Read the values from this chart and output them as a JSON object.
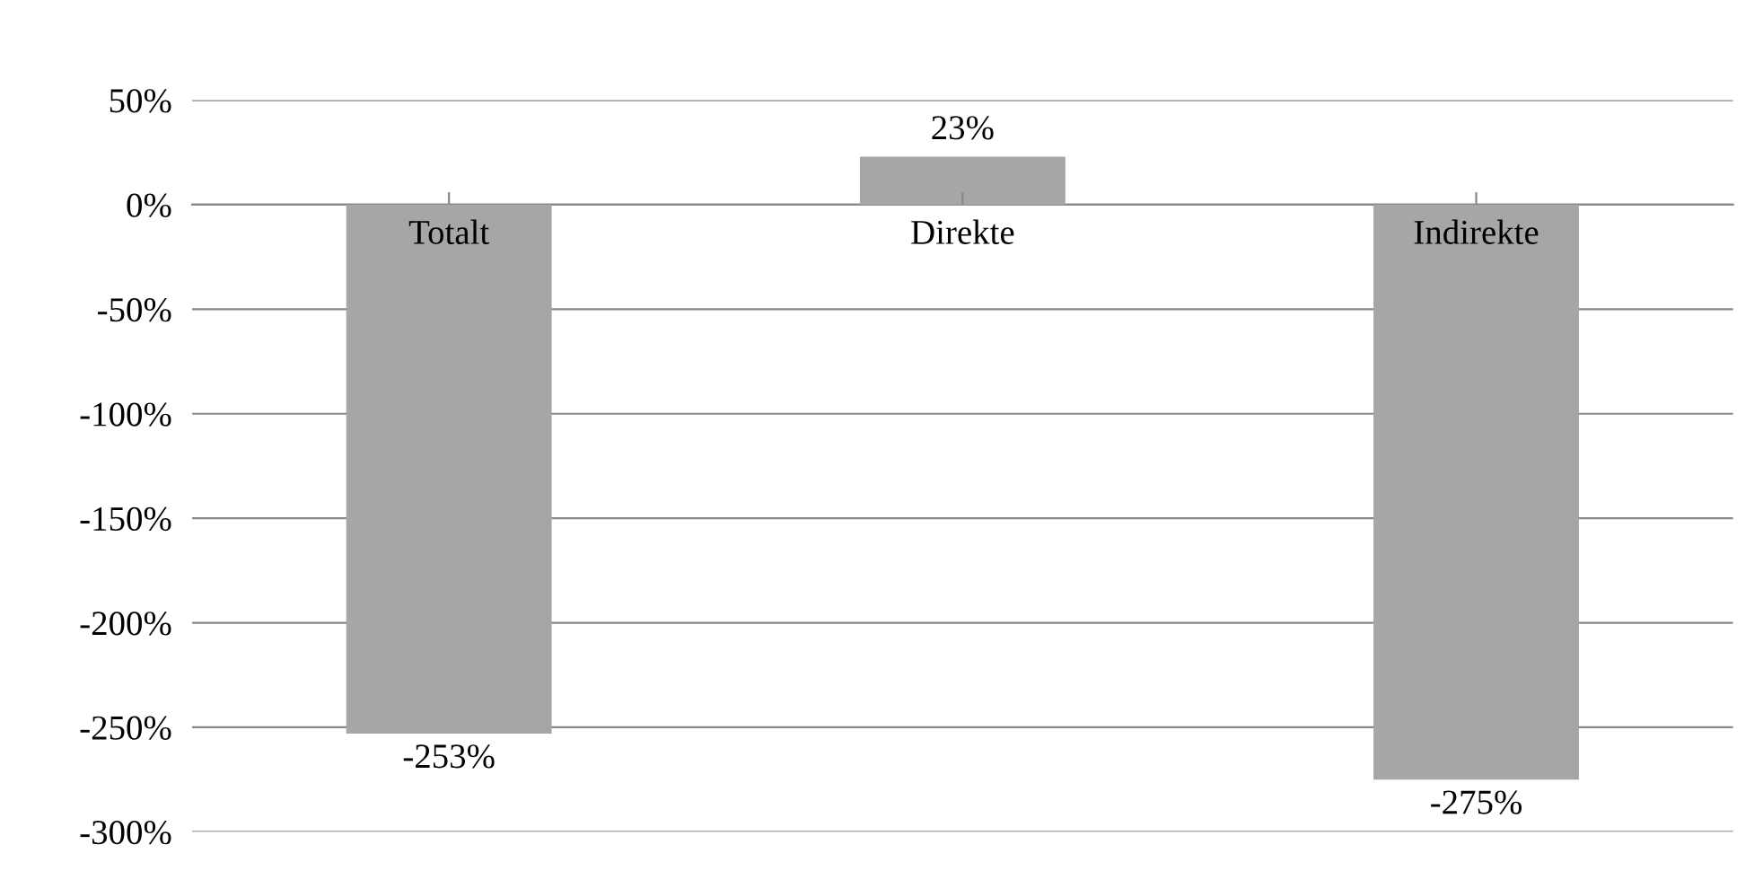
{
  "chart_data": {
    "type": "bar",
    "categories": [
      "Totalt",
      "Direkte",
      "Indirekte"
    ],
    "values": [
      -253,
      23,
      -275
    ],
    "value_labels": [
      "-253%",
      "23%",
      "-275%"
    ],
    "color": "#a6a6a6",
    "ylim": [
      -300,
      50
    ],
    "yticks": [
      {
        "value": 50,
        "label": "50%"
      },
      {
        "value": 0,
        "label": "0%"
      },
      {
        "value": -50,
        "label": "-50%"
      },
      {
        "value": -100,
        "label": "-100%"
      },
      {
        "value": -150,
        "label": "-150%"
      },
      {
        "value": -200,
        "label": "-200%"
      },
      {
        "value": -250,
        "label": "-250%"
      },
      {
        "value": -300,
        "label": "-300%"
      }
    ],
    "grid": "y",
    "legend": false
  }
}
